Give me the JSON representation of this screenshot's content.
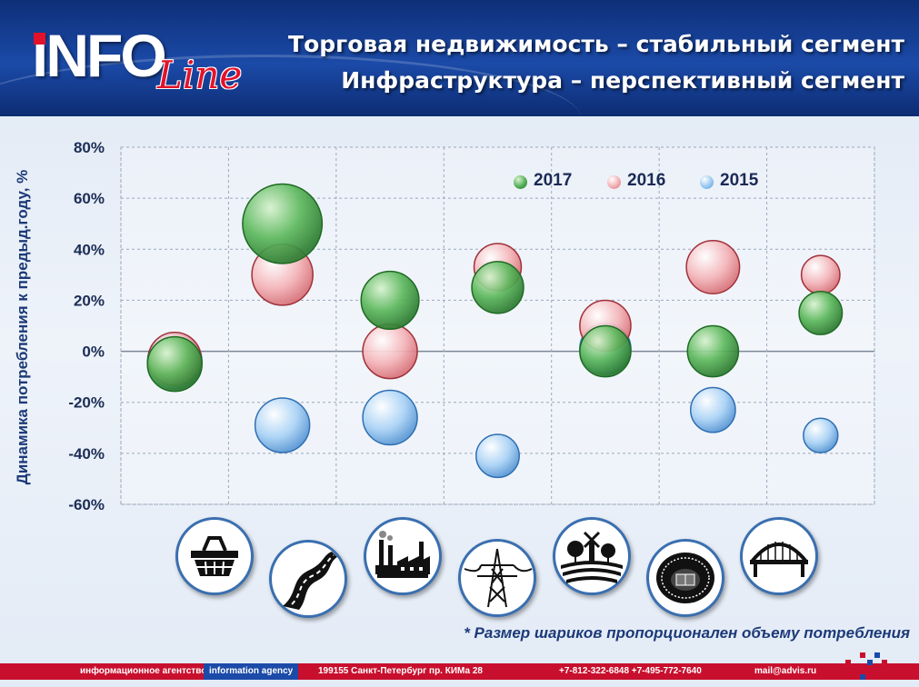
{
  "header": {
    "logo_text": "iNFO",
    "logo_script": "Line",
    "title_line1": "Торговая недвижимость – стабильный сегмент",
    "title_line2": "Инфраструктура – перспективный сегмент"
  },
  "chart_data": {
    "type": "bubble",
    "ylabel": "Динамика потребления к предыд.году, %",
    "ylim": [
      -60,
      80
    ],
    "yticks": [
      -60,
      -40,
      -20,
      0,
      20,
      40,
      60,
      80
    ],
    "y_tick_suffix": "%",
    "grid": true,
    "legend_position": "top-right",
    "categories": [
      "retail-basket",
      "road",
      "industry",
      "power-line",
      "agriculture",
      "stadium",
      "bridge"
    ],
    "series": [
      {
        "name": "2015",
        "color": "#8fc3f0",
        "values": [
          -4,
          -29,
          -26,
          -41,
          1,
          -23,
          -33
        ],
        "sizes": [
          4,
          4,
          4,
          2.5,
          3.5,
          2.7,
          1.6
        ]
      },
      {
        "name": "2016",
        "color": "#f0a8ad",
        "values": [
          -3,
          30,
          0,
          33,
          10,
          33,
          30
        ],
        "sizes": [
          3.8,
          5,
          4,
          3,
          3.5,
          3.8,
          2
        ]
      },
      {
        "name": "2017",
        "color": "#4aa84e",
        "values": [
          -5,
          50,
          20,
          25,
          0,
          0,
          15
        ],
        "sizes": [
          4,
          8.5,
          4.5,
          3.6,
          3.5,
          3.5,
          2.5
        ]
      }
    ]
  },
  "icons": [
    {
      "name": "shopping-basket-icon"
    },
    {
      "name": "road-icon"
    },
    {
      "name": "factory-icon"
    },
    {
      "name": "power-line-icon"
    },
    {
      "name": "farm-icon"
    },
    {
      "name": "stadium-icon"
    },
    {
      "name": "bridge-icon"
    }
  ],
  "note": "* Размер шариков пропорционален объему потребления",
  "footer": {
    "agency_ru": "информационное агентство",
    "agency_en": "information agency",
    "address": "199155 Санкт-Петербург пр. КИМа 28",
    "phones": "+7-812-322-6848 +7-495-772-7640",
    "email": "mail@advis.ru"
  }
}
